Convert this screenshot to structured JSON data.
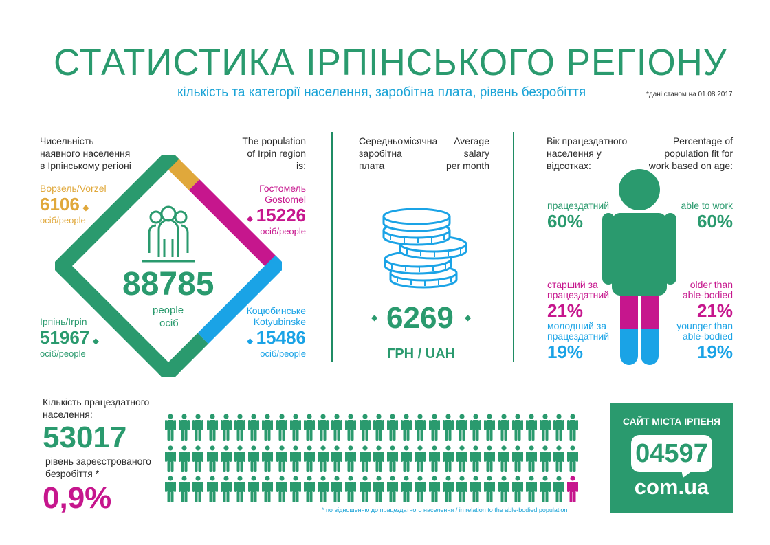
{
  "header": {
    "title": "СТАТИСТИКА ІРПІНСЬКОГО РЕГІОНУ",
    "subtitle": "кількість та категорії населення, заробітна плата, рівень безробіття",
    "date_note": "*дані станом на 01.08.2017"
  },
  "population": {
    "label_ua": [
      "Чисельність",
      "наявного населення",
      "в Ірпінському регіоні"
    ],
    "label_en": [
      "The population",
      "of Irpin region",
      "is:"
    ],
    "total": "88785",
    "total_unit_en": "people",
    "total_unit_ua": "осіб",
    "districts": [
      {
        "name_line1": "Ворзель/Vorzel",
        "name_line2": "",
        "value": "6106",
        "unit": "осіб/people",
        "color": "#e0a83b"
      },
      {
        "name_line1": "Гостомель",
        "name_line2": "Gostomel",
        "value": "15226",
        "unit": "осіб/people",
        "color": "#c6168d"
      },
      {
        "name_line1": "Ірпінь/Irpin",
        "name_line2": "",
        "value": "51967",
        "unit": "осіб/people",
        "color": "#2a9a6e"
      },
      {
        "name_line1": "Коцюбинське",
        "name_line2": "Kotyubinske",
        "value": "15486",
        "unit": "осіб/people",
        "color": "#1aa3e6"
      }
    ]
  },
  "salary": {
    "label_ua": [
      "Середньомісячна",
      "заробітна",
      "плата"
    ],
    "label_en": [
      "Average",
      "salary",
      "per month"
    ],
    "value": "6269",
    "unit": "ГРН / UAH"
  },
  "age": {
    "label_ua": [
      "Вік працездатного",
      "населення у",
      "відсотках:"
    ],
    "label_en": [
      "Percentage of",
      "population fit for",
      "work based on age:"
    ],
    "groups": [
      {
        "ua_line1": "працездатний",
        "ua_line2": "",
        "en_line1": "able to work",
        "en_line2": "",
        "percent": "60%",
        "value": 60,
        "color": "#2a9a6e"
      },
      {
        "ua_line1": "старший за",
        "ua_line2": "працездатний",
        "en_line1": "older than",
        "en_line2": "able-bodied",
        "percent": "21%",
        "value": 21,
        "color": "#c6168d"
      },
      {
        "ua_line1": "молодший за",
        "ua_line2": "працездатний",
        "en_line1": "younger than",
        "en_line2": "able-bodied",
        "percent": "19%",
        "value": 19,
        "color": "#1aa3e6"
      }
    ]
  },
  "workforce": {
    "label": [
      "Кількість працездатного",
      "населення:"
    ],
    "value": "53017",
    "unemployment_label": [
      "рівень зареєстрованого",
      "безробіття *"
    ],
    "unemployment_value": "0,9%",
    "footnote": "* по відношенню до працездатного населення / in relation to the able-bodied population",
    "colors": {
      "employed": "#2a9a6e",
      "unemployed": "#c6168d"
    }
  },
  "badge": {
    "heading": "САЙТ МІСТА ІРПЕНЯ",
    "number": "04597",
    "domain": "com.ua"
  }
}
